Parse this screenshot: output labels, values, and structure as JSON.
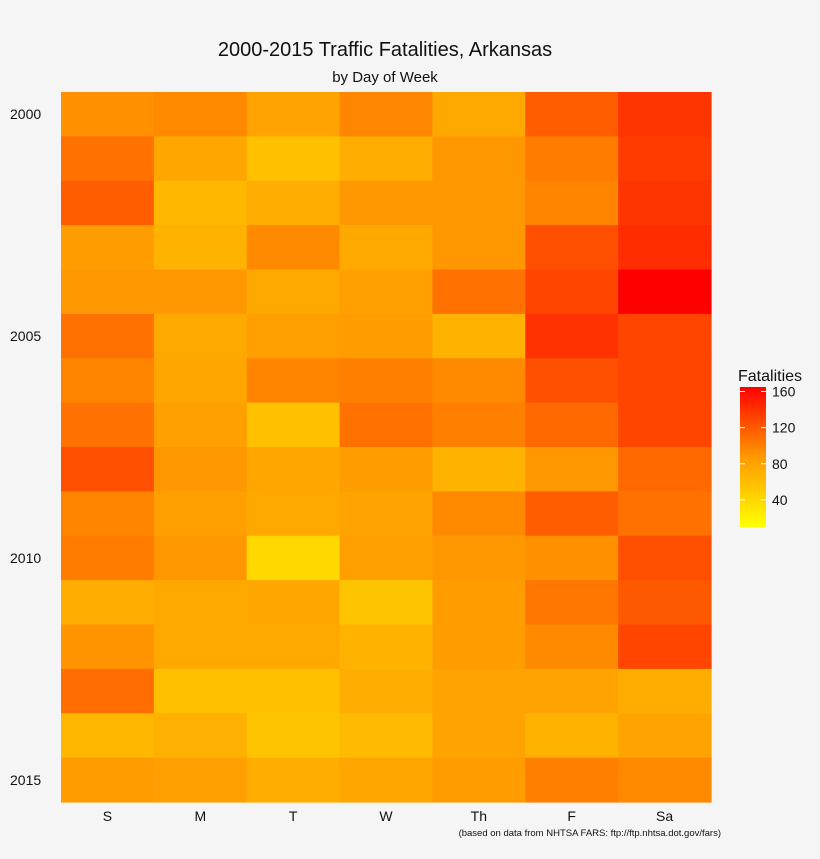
{
  "chart_data": {
    "type": "heatmap",
    "title": "2000-2015 Traffic Fatalities, Arkansas",
    "subtitle": "by Day of Week",
    "xlabel": "",
    "ylabel": "",
    "x_categories": [
      "S",
      "M",
      "T",
      "W",
      "Th",
      "F",
      "Sa"
    ],
    "y_categories": [
      2000,
      2001,
      2002,
      2003,
      2004,
      2005,
      2006,
      2007,
      2008,
      2009,
      2010,
      2011,
      2012,
      2013,
      2014,
      2015
    ],
    "y_tick_labels": [
      "2000",
      "2005",
      "2010",
      "2015"
    ],
    "y_tick_values": [
      2000,
      2005,
      2010,
      2015
    ],
    "values": [
      [
        92,
        95,
        80,
        97,
        75,
        118,
        138
      ],
      [
        108,
        78,
        58,
        72,
        88,
        102,
        135
      ],
      [
        118,
        65,
        72,
        88,
        88,
        98,
        138
      ],
      [
        85,
        68,
        95,
        75,
        88,
        125,
        142
      ],
      [
        88,
        88,
        75,
        82,
        108,
        130,
        165
      ],
      [
        108,
        75,
        82,
        85,
        68,
        140,
        130
      ],
      [
        98,
        78,
        98,
        100,
        95,
        125,
        130
      ],
      [
        108,
        82,
        58,
        108,
        100,
        112,
        130
      ],
      [
        125,
        88,
        78,
        85,
        68,
        88,
        112
      ],
      [
        98,
        82,
        75,
        80,
        95,
        118,
        108
      ],
      [
        102,
        88,
        40,
        82,
        88,
        92,
        125
      ],
      [
        72,
        75,
        78,
        55,
        85,
        105,
        120
      ],
      [
        90,
        75,
        75,
        68,
        85,
        95,
        130
      ],
      [
        110,
        58,
        58,
        72,
        80,
        80,
        72
      ],
      [
        65,
        70,
        55,
        62,
        80,
        68,
        80
      ],
      [
        85,
        82,
        72,
        78,
        85,
        100,
        95
      ]
    ],
    "legend": {
      "title": "Fatalities",
      "ticks": [
        40,
        80,
        120,
        160
      ],
      "min": 10,
      "max": 165,
      "position": "right"
    },
    "colors": {
      "low": "#ffff00",
      "mid": "#ff9900",
      "high": "#ff0000"
    },
    "caption": "(based on data from NHTSA FARS: ftp://ftp.nhtsa.dot.gov/fars)"
  }
}
